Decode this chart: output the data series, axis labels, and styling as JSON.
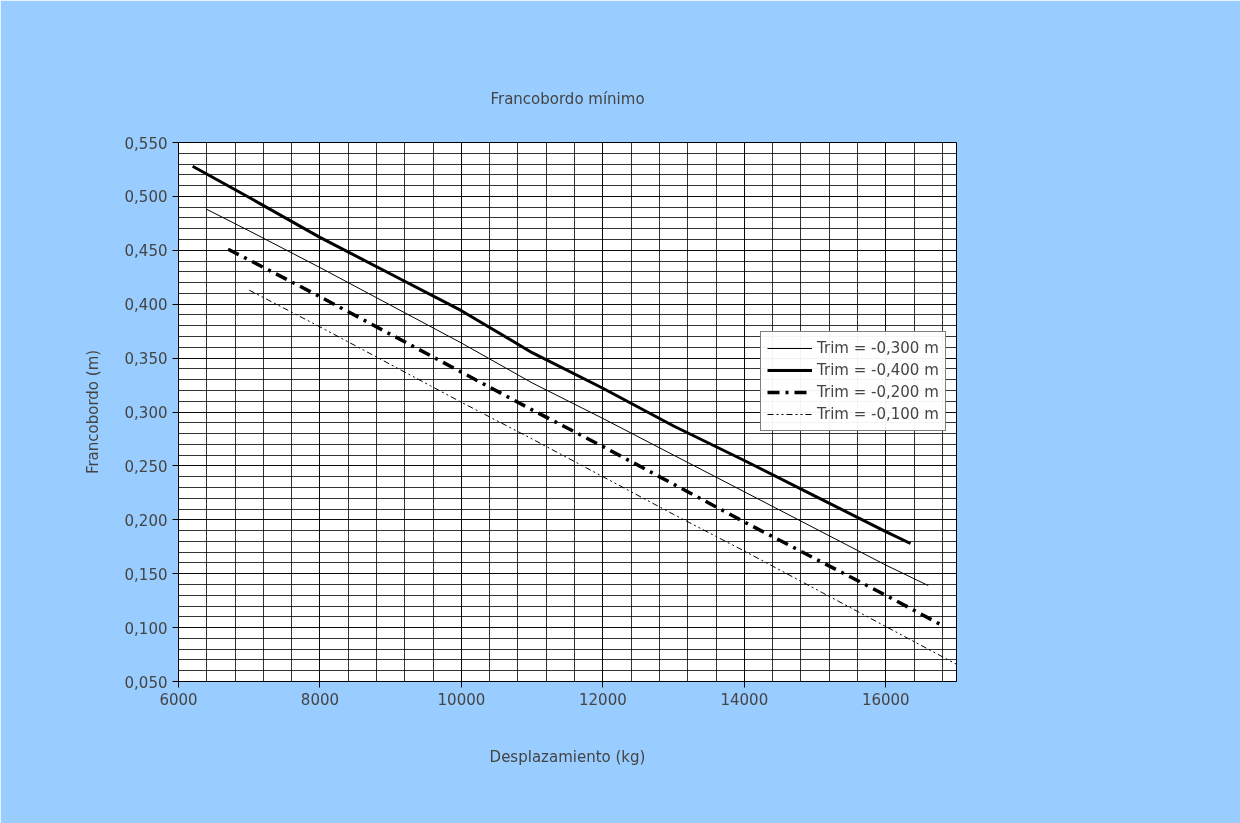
{
  "chart_data": {
    "type": "line",
    "title": "Francobordo mínimo",
    "xlabel": "Desplazamiento (kg)",
    "ylabel": "Francobordo (m)",
    "xlim": [
      6000,
      17000
    ],
    "xticks": [
      6000,
      8000,
      10000,
      12000,
      14000,
      16000
    ],
    "ylim": [
      0.05,
      0.55
    ],
    "yticks": [
      {
        "value": 0.05,
        "label": "0,050"
      },
      {
        "value": 0.1,
        "label": "0,100"
      },
      {
        "value": 0.15,
        "label": "0,150"
      },
      {
        "value": 0.2,
        "label": "0,200"
      },
      {
        "value": 0.25,
        "label": "0,250"
      },
      {
        "value": 0.3,
        "label": "0,300"
      },
      {
        "value": 0.35,
        "label": "0,350"
      },
      {
        "value": 0.4,
        "label": "0,400"
      },
      {
        "value": 0.45,
        "label": "0,450"
      },
      {
        "value": 0.5,
        "label": "0,500"
      },
      {
        "value": 0.55,
        "label": "0,550"
      }
    ],
    "grid": true,
    "legend": "right",
    "marker": "none",
    "series": [
      {
        "name": "Trim = -0,300 m",
        "color": "#000000",
        "line_style": "solid",
        "x": [
          6400,
          7000,
          8000,
          9000,
          10000,
          11000,
          12000,
          13000,
          14000,
          15000,
          16000,
          16600
        ],
        "values": [
          0.488,
          0.468,
          0.434,
          0.399,
          0.364,
          0.327,
          0.294,
          0.26,
          0.226,
          0.192,
          0.158,
          0.139
        ]
      },
      {
        "name": "Trim = -0,400 m",
        "color": "#000000",
        "line_style": "solid",
        "x": [
          6200,
          7000,
          8000,
          9000,
          10000,
          11000,
          12000,
          13000,
          14000,
          15000,
          16000,
          16350
        ],
        "values": [
          0.528,
          0.499,
          0.462,
          0.428,
          0.394,
          0.355,
          0.322,
          0.287,
          0.255,
          0.222,
          0.189,
          0.178
        ]
      },
      {
        "name": "Trim = -0,200 m",
        "color": "#000000",
        "line_style": "dashed",
        "x": [
          6700,
          7000,
          8000,
          9000,
          10000,
          11000,
          12000,
          13000,
          14000,
          15000,
          16000,
          16800
        ],
        "values": [
          0.451,
          0.441,
          0.407,
          0.372,
          0.337,
          0.302,
          0.268,
          0.233,
          0.198,
          0.164,
          0.13,
          0.102
        ]
      },
      {
        "name": "Trim = -0,100 m",
        "color": "#000000",
        "line_style": "dotted",
        "x": [
          7000,
          8000,
          9000,
          10000,
          11000,
          12000,
          13000,
          14000,
          15000,
          16000,
          17000
        ],
        "values": [
          0.413,
          0.379,
          0.344,
          0.309,
          0.275,
          0.24,
          0.205,
          0.171,
          0.136,
          0.101,
          0.066
        ]
      }
    ]
  }
}
